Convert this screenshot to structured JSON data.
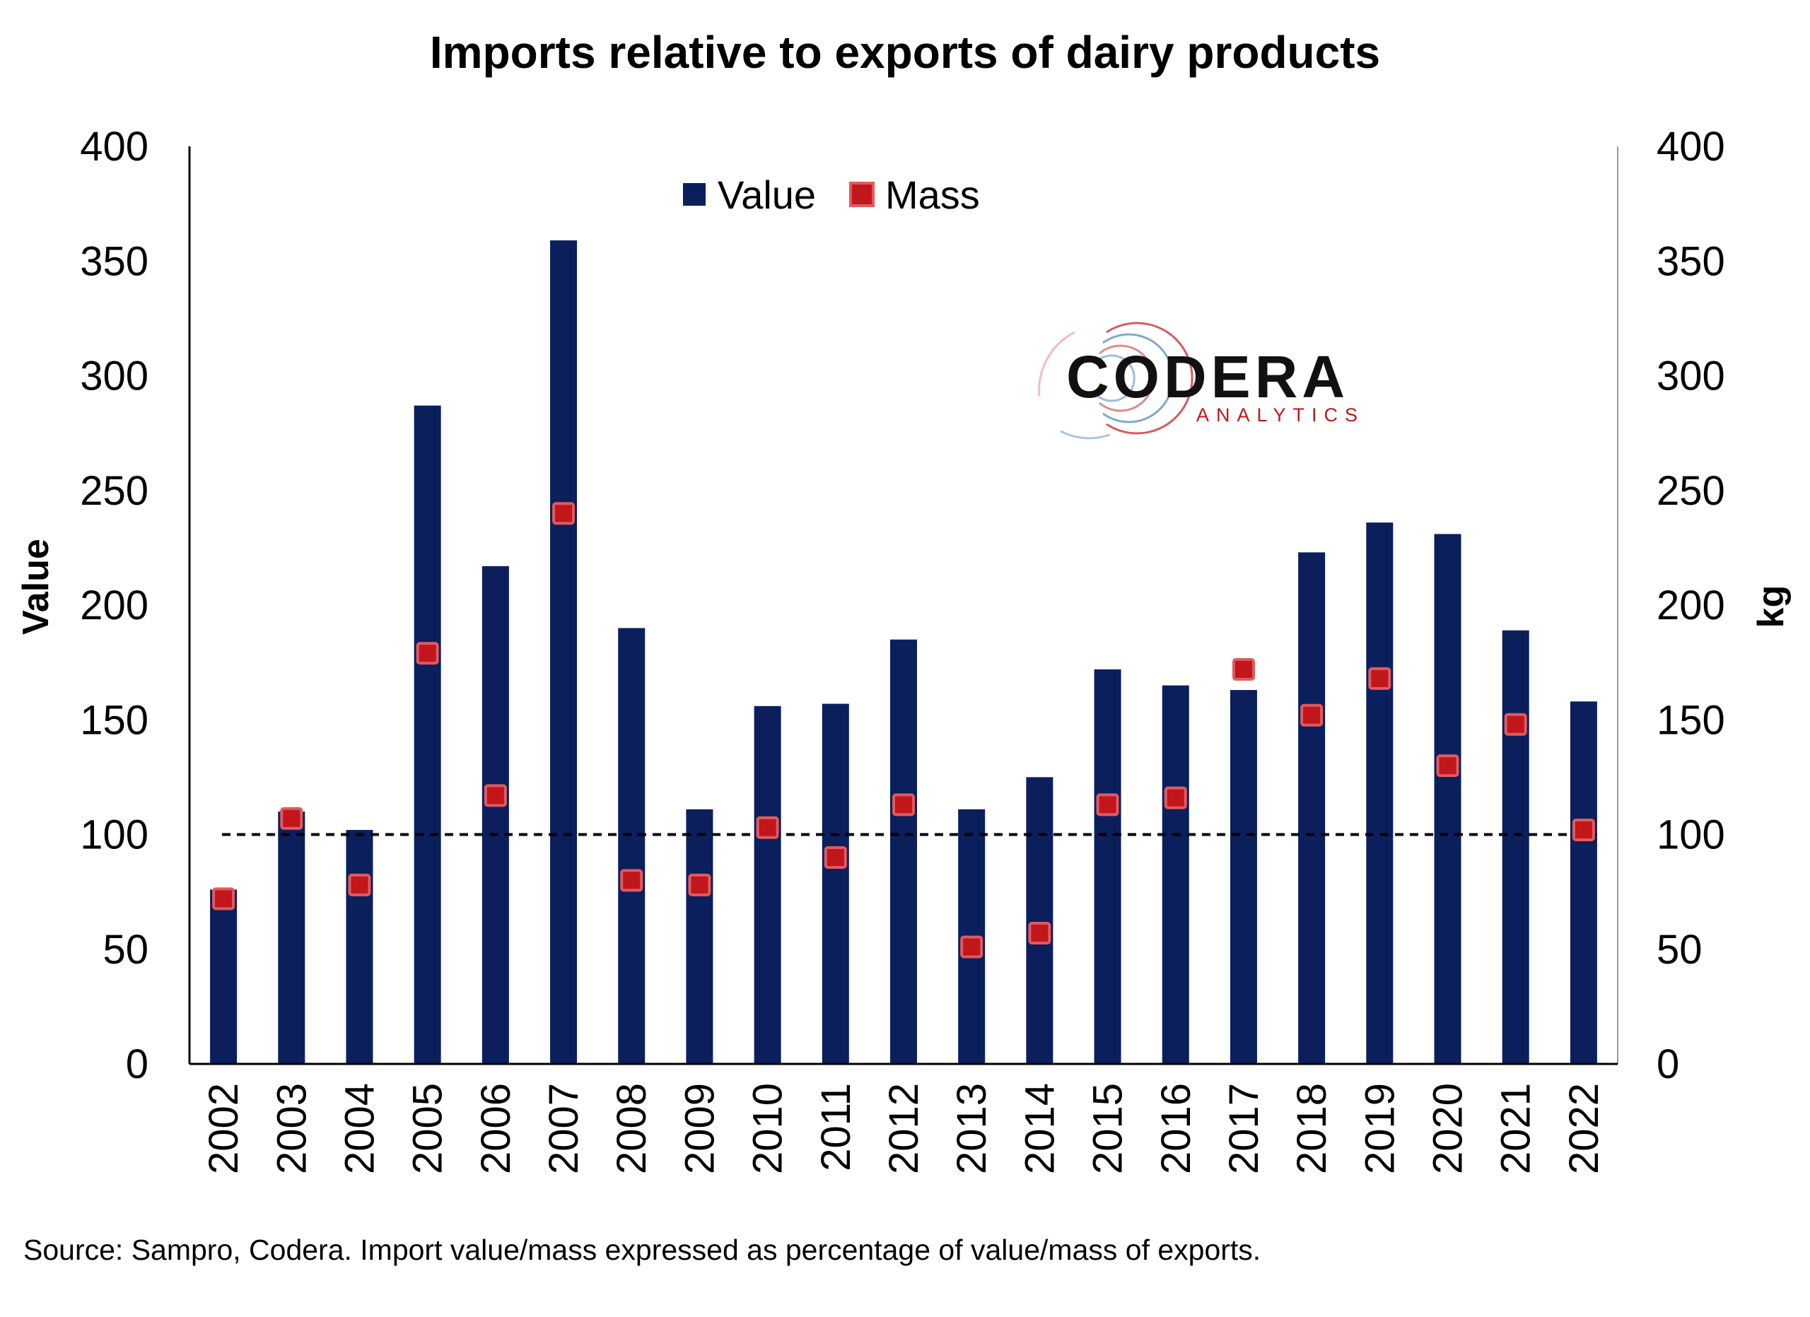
{
  "chart_data": {
    "type": "bar",
    "title": "Imports relative to exports of dairy products",
    "ylabel": "Value",
    "y2label": "kg",
    "ylim": [
      0,
      400
    ],
    "y2lim": [
      0,
      400
    ],
    "yticks": [
      0,
      50,
      100,
      150,
      200,
      250,
      300,
      350,
      400
    ],
    "legend_position": "top-center",
    "grid": false,
    "reference_line": 100,
    "categories": [
      "2002",
      "2003",
      "2004",
      "2005",
      "2006",
      "2007",
      "2008",
      "2009",
      "2010",
      "2011",
      "2012",
      "2013",
      "2014",
      "2015",
      "2016",
      "2017",
      "2018",
      "2019",
      "2020",
      "2021",
      "2022"
    ],
    "series": [
      {
        "name": "Value",
        "type": "bar",
        "axis": "left",
        "color": "#0b1f5c",
        "values": [
          76,
          110,
          102,
          287,
          217,
          359,
          190,
          111,
          156,
          157,
          185,
          111,
          125,
          172,
          165,
          163,
          223,
          236,
          231,
          189,
          158
        ]
      },
      {
        "name": "Mass",
        "type": "scatter",
        "axis": "right",
        "color": "#c0161c",
        "values": [
          72,
          107,
          78,
          179,
          117,
          240,
          80,
          78,
          103,
          90,
          113,
          51,
          57,
          113,
          116,
          172,
          152,
          168,
          130,
          148,
          102
        ]
      }
    ]
  },
  "logo": {
    "name": "CODERA",
    "tagline": "ANALYTICS"
  },
  "source_note": "Source: Sampro, Codera. Import value/mass expressed as percentage of value/mass of exports."
}
